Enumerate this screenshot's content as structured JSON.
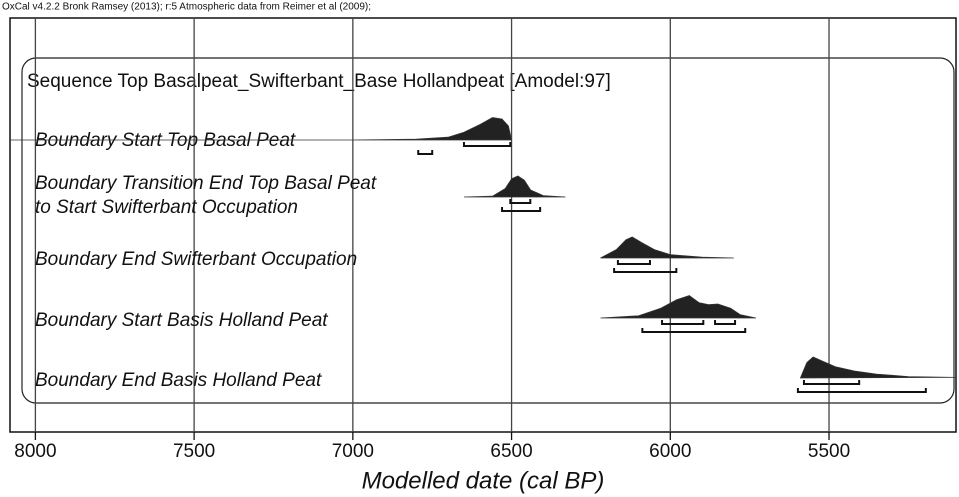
{
  "chart_data": {
    "type": "oxcal",
    "header": "OxCal v4.2.2 Bronk Ramsey (2013); r:5 Atmospheric data from Reimer et al (2009);",
    "title": "Sequence Top Basalpeat_Swifterbant_Base Hollandpeat [Amodel:97]",
    "xlabel": "Modelled date (cal BP)",
    "xlim": [
      8080,
      5100
    ],
    "xticks": [
      8000,
      7500,
      7000,
      6500,
      6000,
      5500
    ],
    "grid": true,
    "color": "#222222",
    "boundaries": [
      {
        "name": [
          "Boundary Start Top Basal Peat"
        ],
        "dist_x": [
          8080,
          7000,
          6800,
          6700,
          6650,
          6600,
          6560,
          6530,
          6510,
          6500
        ],
        "dist_y": [
          0,
          0,
          3,
          10,
          28,
          55,
          80,
          75,
          50,
          0
        ],
        "ranges": [
          [
            [
              6650,
              6504
            ]
          ],
          [
            [
              6794,
              6750
            ]
          ]
        ]
      },
      {
        "name": [
          "Boundary Transition End Top Basal Peat",
          "to Start Swifterbant Occupation"
        ],
        "dist_x": [
          6650,
          6560,
          6520,
          6500,
          6480,
          6460,
          6440,
          6400,
          6330
        ],
        "dist_y": [
          0,
          3,
          30,
          65,
          75,
          60,
          25,
          5,
          0
        ],
        "ranges": [
          [
            [
              6504,
              6441
            ]
          ],
          [
            [
              6530,
              6410
            ]
          ]
        ]
      },
      {
        "name": [
          "Boundary End Swifterbant Occupation"
        ],
        "dist_x": [
          6220,
          6170,
          6140,
          6120,
          6090,
          6050,
          6000,
          5900,
          5800
        ],
        "dist_y": [
          0,
          30,
          65,
          75,
          55,
          30,
          12,
          3,
          0
        ],
        "ranges": [
          [
            [
              6165,
              6064
            ]
          ],
          [
            [
              6177,
              5981
            ]
          ]
        ]
      },
      {
        "name": [
          "Boundary Start Basis Holland Peat"
        ],
        "dist_x": [
          6220,
          6100,
          6030,
          5980,
          5940,
          5910,
          5880,
          5850,
          5810,
          5780,
          5730
        ],
        "dist_y": [
          0,
          8,
          35,
          65,
          80,
          55,
          48,
          50,
          35,
          12,
          0
        ],
        "ranges": [
          [
            [
              6026,
              5896
            ],
            [
              5859,
              5796
            ]
          ],
          [
            [
              6088,
              5764
            ]
          ]
        ]
      },
      {
        "name": [
          "Boundary End Basis Holland Peat"
        ],
        "dist_x": [
          5590,
          5570,
          5550,
          5520,
          5480,
          5420,
          5350,
          5250,
          5100
        ],
        "dist_y": [
          0,
          55,
          75,
          60,
          40,
          25,
          14,
          5,
          2
        ],
        "ranges": [
          [
            [
              5579,
              5405
            ]
          ],
          [
            [
              5598,
              5195
            ]
          ]
        ]
      }
    ]
  }
}
